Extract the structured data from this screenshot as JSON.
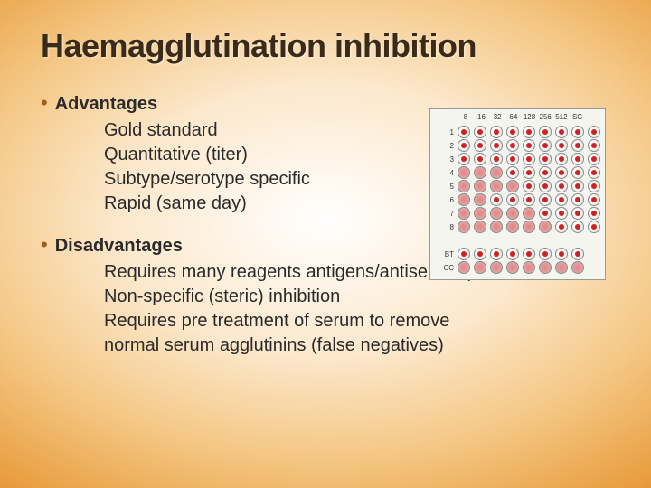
{
  "title": "Haemagglutination inhibition",
  "advantages": {
    "heading": "Advantages",
    "items": [
      "Gold standard",
      "Quantitative (titer)",
      "Subtype/serotype specific",
      "Rapid (same day)"
    ]
  },
  "disadvantages": {
    "heading": "Disadvantages",
    "items": [
      "Requires many reagents antigens/antiserums)",
      "Non-specific (steric) inhibition",
      "Requires pre treatment of serum to remove",
      "normal serum agglutinins (false negatives)"
    ]
  },
  "plate": {
    "col_labels": [
      "8",
      "16",
      "32",
      "64",
      "128",
      "256",
      "512",
      "SC",
      ""
    ],
    "row_labels": [
      "1",
      "2",
      "3",
      "4",
      "5",
      "6",
      "7",
      "8",
      "",
      "BT",
      "CC"
    ],
    "dot_color": "#d02020",
    "well_border": "#888888",
    "cells": [
      [
        1,
        1,
        1,
        1,
        1,
        1,
        1,
        1,
        1
      ],
      [
        1,
        1,
        1,
        1,
        1,
        1,
        1,
        1,
        1
      ],
      [
        1,
        1,
        1,
        1,
        1,
        1,
        1,
        1,
        1
      ],
      [
        2,
        2,
        2,
        1,
        1,
        1,
        1,
        1,
        1
      ],
      [
        2,
        2,
        2,
        2,
        1,
        1,
        1,
        1,
        1
      ],
      [
        2,
        2,
        1,
        1,
        1,
        1,
        1,
        1,
        1
      ],
      [
        2,
        2,
        2,
        2,
        2,
        1,
        1,
        1,
        1
      ],
      [
        2,
        2,
        2,
        2,
        2,
        2,
        1,
        1,
        1
      ],
      [
        0,
        0,
        0,
        0,
        0,
        0,
        0,
        0,
        0
      ],
      [
        1,
        1,
        1,
        1,
        1,
        1,
        1,
        1,
        0
      ],
      [
        2,
        2,
        2,
        2,
        2,
        2,
        2,
        2,
        0
      ]
    ]
  },
  "style": {
    "title_fontsize": 36,
    "body_fontsize": 20,
    "bullet_color": "#a06020",
    "title_color": "#3a2a1a",
    "text_color": "#2a2a2a",
    "bg_gradient_inner": "#ffffff",
    "bg_gradient_mid": "#fce8cc",
    "bg_gradient_outer": "#e89a3a"
  }
}
